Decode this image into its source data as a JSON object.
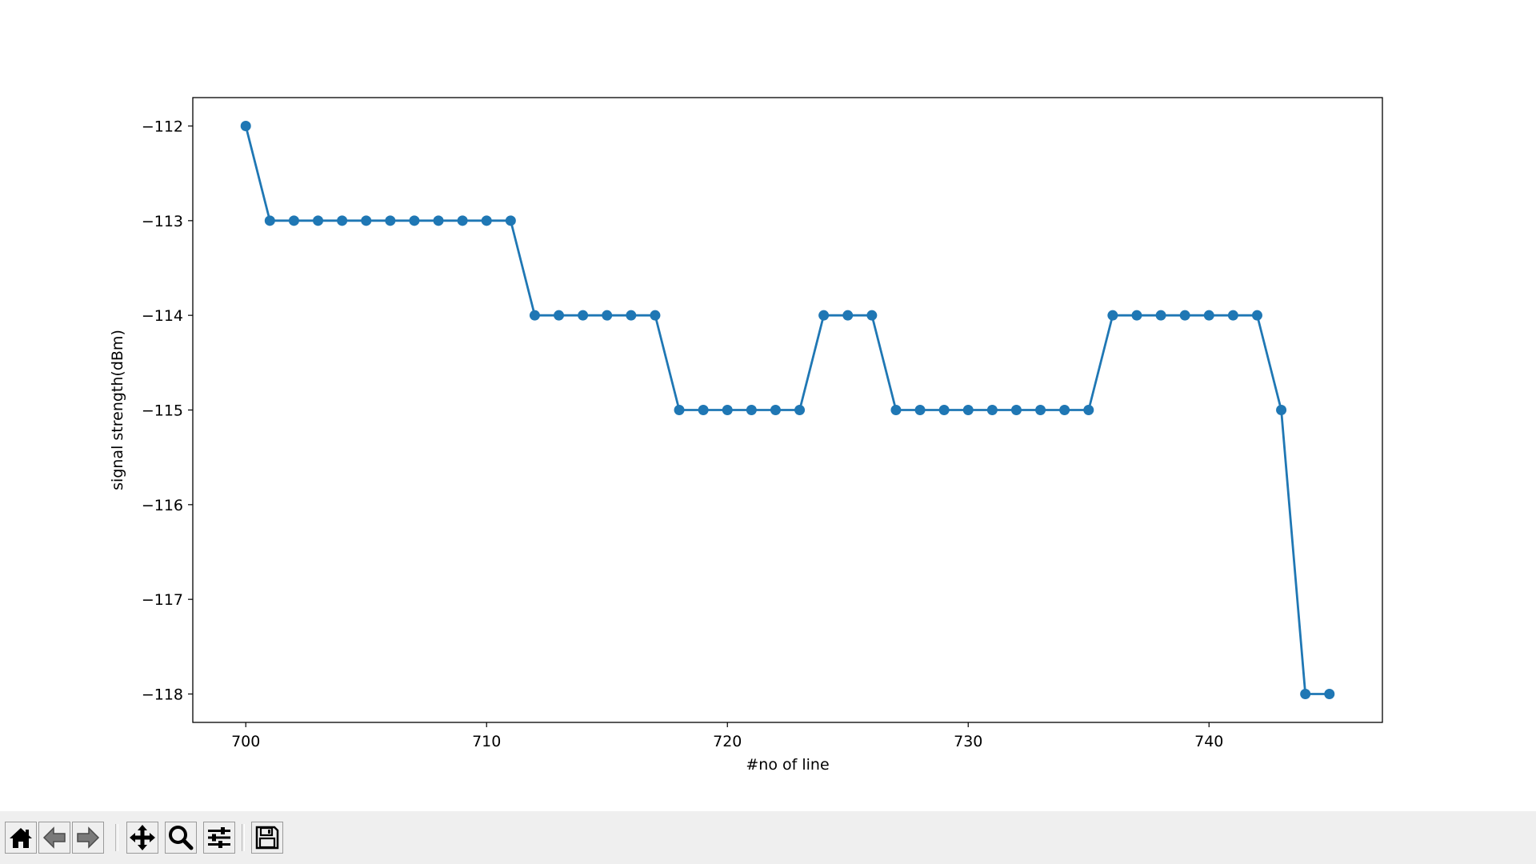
{
  "chart_data": {
    "type": "line",
    "title": "",
    "xlabel": "#no of line",
    "ylabel": "signal strength(dBm)",
    "xlim": [
      697.8,
      747.2
    ],
    "ylim": [
      -118.3,
      -111.7
    ],
    "x_ticks": [
      700,
      710,
      720,
      730,
      740
    ],
    "x_tick_labels": [
      "700",
      "710",
      "720",
      "730",
      "740"
    ],
    "y_ticks": [
      -112,
      -113,
      -114,
      -115,
      -116,
      -117,
      -118
    ],
    "y_tick_labels": [
      "−112",
      "−113",
      "−114",
      "−115",
      "−116",
      "−117",
      "−118"
    ],
    "grid": false,
    "marker": "circle",
    "series": [
      {
        "color": "#1f77b4",
        "x": [
          700,
          701,
          702,
          703,
          704,
          705,
          706,
          707,
          708,
          709,
          710,
          711,
          712,
          713,
          714,
          715,
          716,
          717,
          718,
          719,
          720,
          721,
          722,
          723,
          724,
          725,
          726,
          727,
          728,
          729,
          730,
          731,
          732,
          733,
          734,
          735,
          736,
          737,
          738,
          739,
          740,
          741,
          742,
          743,
          744,
          745
        ],
        "y": [
          -112,
          -113,
          -113,
          -113,
          -113,
          -113,
          -113,
          -113,
          -113,
          -113,
          -113,
          -113,
          -114,
          -114,
          -114,
          -114,
          -114,
          -114,
          -115,
          -115,
          -115,
          -115,
          -115,
          -115,
          -114,
          -114,
          -114,
          -115,
          -115,
          -115,
          -115,
          -115,
          -115,
          -115,
          -115,
          -115,
          -114,
          -114,
          -114,
          -114,
          -114,
          -114,
          -114,
          -115,
          -118,
          -118
        ]
      }
    ]
  },
  "toolbar": {
    "buttons": [
      {
        "name": "home-button",
        "icon": "home-icon"
      },
      {
        "name": "back-button",
        "icon": "arrow-left-icon"
      },
      {
        "name": "forward-button",
        "icon": "arrow-right-icon"
      },
      {
        "name": "pan-button",
        "icon": "move-icon"
      },
      {
        "name": "zoom-button",
        "icon": "magnifier-icon"
      },
      {
        "name": "configure-subplots-button",
        "icon": "sliders-icon"
      },
      {
        "name": "save-button",
        "icon": "floppy-disk-icon"
      }
    ]
  }
}
